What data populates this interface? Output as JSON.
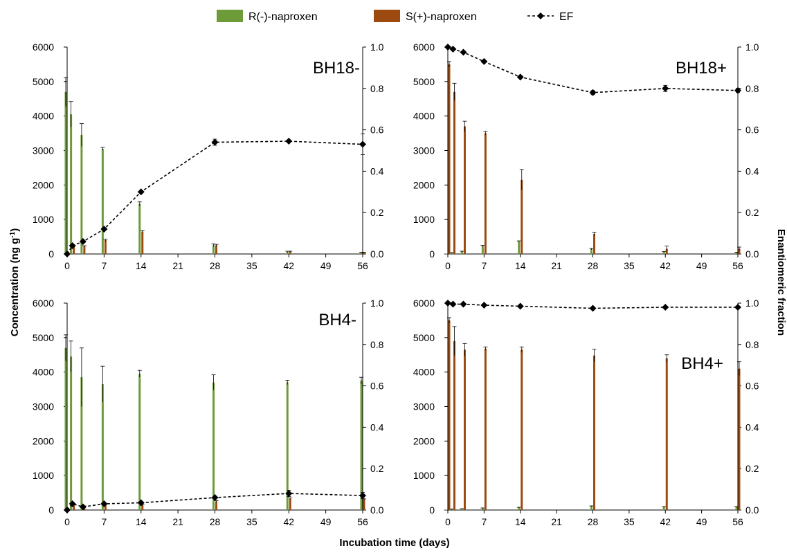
{
  "figure": {
    "xlabel": "Incubation time (days)",
    "ylabel_main": "Concentration (ng g",
    "ylabel_sup": "-1",
    "ylabel_close": ")",
    "y2label": "Enantiomeric fraction"
  },
  "legend": [
    {
      "name": "R(-)-naproxen",
      "color": "#6e9b3a",
      "kind": "bar"
    },
    {
      "name": "S(+)-naproxen",
      "color": "#9c4a10",
      "kind": "bar"
    },
    {
      "name": "EF",
      "color": "#000000",
      "kind": "line"
    }
  ],
  "colors": {
    "r": "#6e9b3a",
    "s": "#9c4a10",
    "ef": "#000000",
    "axis": "#000000"
  },
  "chart_data": [
    {
      "type": "bar",
      "label": "BH18-",
      "x": [
        0,
        1,
        3,
        7,
        14,
        28,
        42,
        56
      ],
      "xticks": [
        0,
        7,
        14,
        21,
        28,
        35,
        42,
        49,
        56
      ],
      "xlim": [
        0,
        56
      ],
      "ylim": [
        0,
        6000
      ],
      "yticks": [
        0,
        1000,
        2000,
        3000,
        4000,
        5000,
        6000
      ],
      "y2lim": [
        0,
        1
      ],
      "y2ticks": [
        "0.0",
        "0.2",
        "0.4",
        "0.6",
        "0.8",
        "1.0"
      ],
      "series": [
        {
          "name": "R(-)-naproxen",
          "values": [
            4700,
            4050,
            3450,
            3050,
            1450,
            250,
            60,
            40
          ],
          "errors": [
            420,
            370,
            330,
            40,
            60,
            40,
            20,
            10
          ]
        },
        {
          "name": "S(+)-naproxen",
          "values": [
            10,
            220,
            220,
            400,
            650,
            250,
            70,
            40
          ],
          "errors": [
            0,
            20,
            20,
            30,
            20,
            30,
            10,
            10
          ]
        },
        {
          "name": "EF",
          "values": [
            0.0,
            0.04,
            0.06,
            0.12,
            0.3,
            0.54,
            0.545,
            0.53
          ],
          "errors": [
            0,
            0,
            0,
            0,
            0,
            0.015,
            0,
            0.05
          ]
        }
      ]
    },
    {
      "type": "bar",
      "label": "BH18+",
      "x": [
        0,
        1,
        3,
        7,
        14,
        28,
        42,
        56
      ],
      "xticks": [
        0,
        7,
        14,
        21,
        28,
        35,
        42,
        49,
        56
      ],
      "xlim": [
        0,
        56
      ],
      "ylim": [
        0,
        6000
      ],
      "yticks": [
        0,
        1000,
        2000,
        3000,
        4000,
        5000,
        6000
      ],
      "y2lim": [
        0,
        1
      ],
      "y2ticks": [
        "0.0",
        "0.2",
        "0.4",
        "0.6",
        "0.8",
        "1.0"
      ],
      "series": [
        {
          "name": "R(-)-naproxen",
          "values": [
            10,
            30,
            70,
            230,
            360,
            140,
            60,
            40
          ],
          "errors": [
            0,
            10,
            10,
            20,
            20,
            20,
            10,
            10
          ]
        },
        {
          "name": "S(+)-naproxen",
          "values": [
            5500,
            4700,
            3700,
            3500,
            2150,
            580,
            150,
            150
          ],
          "errors": [
            80,
            250,
            150,
            50,
            300,
            50,
            80,
            50
          ]
        },
        {
          "name": "EF",
          "values": [
            1.0,
            0.99,
            0.975,
            0.93,
            0.855,
            0.78,
            0.8,
            0.79
          ],
          "errors": [
            0,
            0,
            0,
            0,
            0,
            0.01,
            0.015,
            0.01
          ]
        }
      ]
    },
    {
      "type": "bar",
      "label": "BH4-",
      "x": [
        0,
        1,
        3,
        7,
        14,
        28,
        42,
        56
      ],
      "xticks": [
        0,
        7,
        14,
        21,
        28,
        35,
        42,
        49,
        56
      ],
      "xlim": [
        0,
        56
      ],
      "ylim": [
        0,
        6000
      ],
      "yticks": [
        0,
        1000,
        2000,
        3000,
        4000,
        5000,
        6000
      ],
      "y2lim": [
        0,
        1
      ],
      "y2ticks": [
        "0.0",
        "0.2",
        "0.4",
        "0.6",
        "0.8",
        "1.0"
      ],
      "series": [
        {
          "name": "R(-)-naproxen",
          "values": [
            4700,
            4450,
            3850,
            3650,
            3950,
            3700,
            3700,
            3750
          ],
          "errors": [
            380,
            450,
            850,
            520,
            100,
            220,
            60,
            100
          ]
        },
        {
          "name": "S(+)-naproxen",
          "values": [
            10,
            150,
            100,
            150,
            150,
            250,
            330,
            300
          ],
          "errors": [
            0,
            20,
            20,
            20,
            20,
            20,
            20,
            20
          ]
        },
        {
          "name": "EF",
          "values": [
            0.0,
            0.03,
            0.015,
            0.03,
            0.035,
            0.06,
            0.08,
            0.07
          ],
          "errors": [
            0,
            0,
            0,
            0,
            0,
            0,
            0.015,
            0.015
          ]
        }
      ]
    },
    {
      "type": "bar",
      "label": "BH4+",
      "x": [
        0,
        1,
        3,
        7,
        14,
        28,
        42,
        56
      ],
      "xticks": [
        0,
        7,
        14,
        21,
        28,
        35,
        42,
        49,
        56
      ],
      "xlim": [
        0,
        56
      ],
      "ylim": [
        0,
        6000
      ],
      "yticks": [
        0,
        1000,
        2000,
        3000,
        4000,
        5000,
        6000
      ],
      "y2lim": [
        0,
        1
      ],
      "y2ticks": [
        "0.0",
        "0.2",
        "0.4",
        "0.6",
        "0.8",
        "1.0"
      ],
      "series": [
        {
          "name": "R(-)-naproxen",
          "values": [
            10,
            20,
            30,
            50,
            70,
            110,
            90,
            90
          ],
          "errors": [
            0,
            10,
            10,
            10,
            10,
            10,
            10,
            10
          ]
        },
        {
          "name": "S(+)-naproxen",
          "values": [
            5500,
            4900,
            4650,
            4680,
            4650,
            4480,
            4400,
            4100
          ],
          "errors": [
            80,
            420,
            180,
            50,
            80,
            180,
            100,
            200
          ]
        },
        {
          "name": "EF",
          "values": [
            1.0,
            0.995,
            0.995,
            0.99,
            0.985,
            0.975,
            0.98,
            0.98
          ],
          "errors": [
            0,
            0,
            0,
            0,
            0,
            0,
            0,
            0
          ]
        }
      ]
    }
  ]
}
